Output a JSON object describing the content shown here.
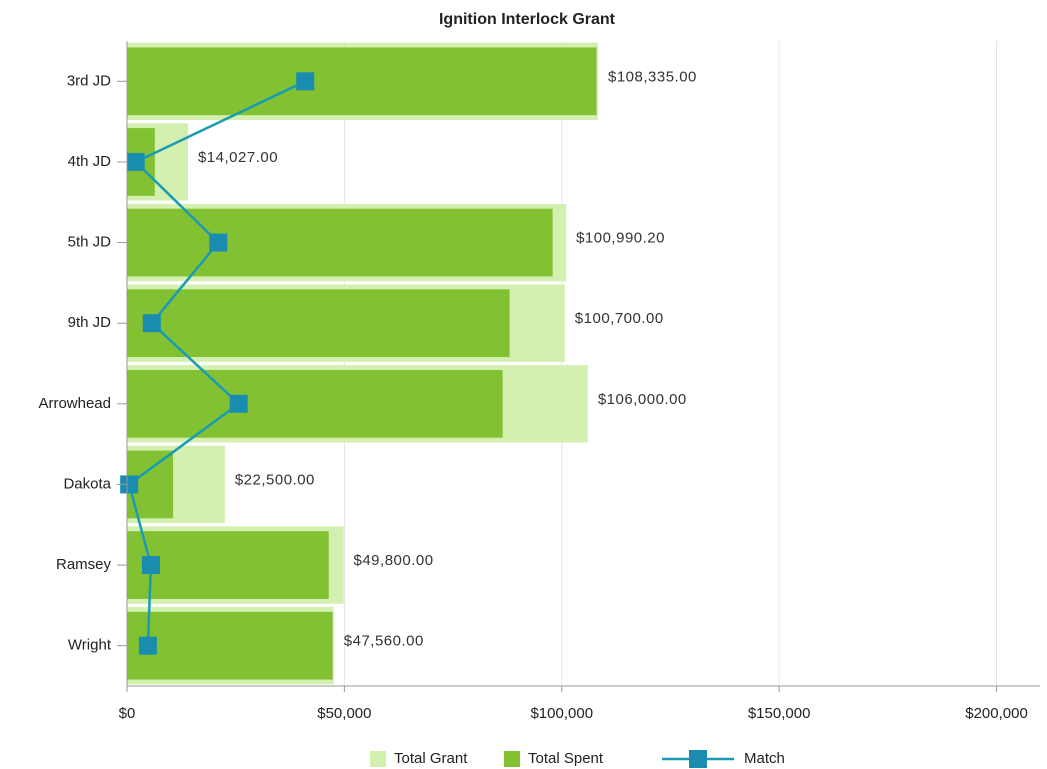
{
  "chart_data": {
    "type": "bar",
    "orientation": "horizontal",
    "title": "Ignition Interlock Grant",
    "categories": [
      "3rd JD",
      "4th JD",
      "5th JD",
      "9th JD",
      "Arrowhead",
      "Dakota",
      "Ramsey",
      "Wright"
    ],
    "series": [
      {
        "name": "Total Grant",
        "color": "#d4f0b0",
        "values": [
          108335,
          14027,
          100990.2,
          100700,
          106000,
          22500,
          49800,
          47560
        ],
        "value_labels": [
          "$108,335.00",
          "$14,027.00",
          "$100,990.20",
          "$100,700.00",
          "$106,000.00",
          "$22,500.00",
          "$49,800.00",
          "$47,560.00"
        ]
      },
      {
        "name": "Total Spent",
        "color": "#82c232",
        "values": [
          108000,
          6400,
          97900,
          88000,
          86400,
          10600,
          46400,
          47300
        ]
      },
      {
        "name": "Match",
        "color": "#1a9bb5",
        "type": "line",
        "values": [
          41000,
          2000,
          21000,
          5700,
          25700,
          500,
          5500,
          4800
        ]
      }
    ],
    "xlim": [
      0,
      210000
    ],
    "xticks": [
      {
        "value": 0,
        "label": "$0"
      },
      {
        "value": 50000,
        "label": "$50,000"
      },
      {
        "value": 100000,
        "label": "$100,000"
      },
      {
        "value": 150000,
        "label": "$150,000"
      },
      {
        "value": 200000,
        "label": "$200,000"
      }
    ],
    "grid": true,
    "legend": "bottom"
  }
}
